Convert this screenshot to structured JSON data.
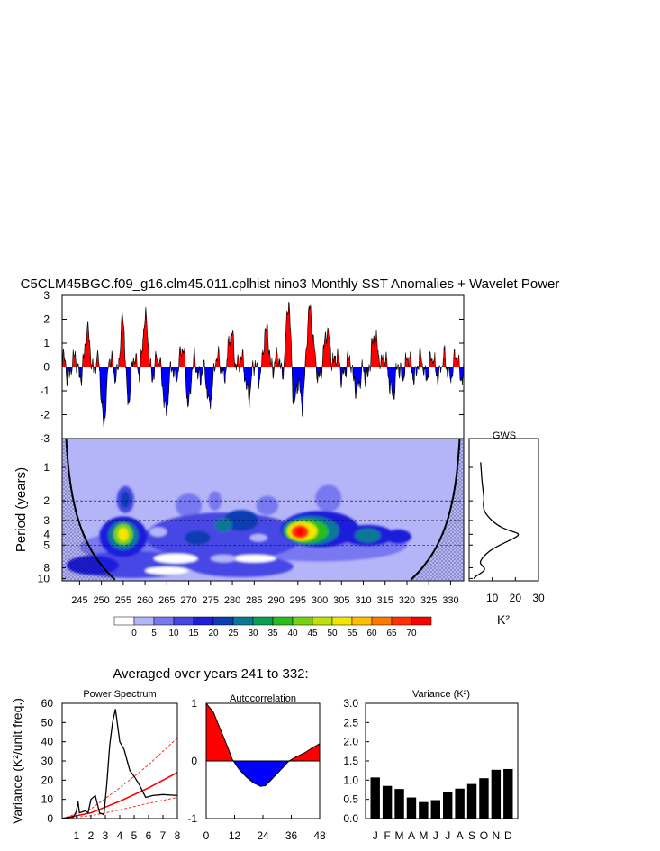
{
  "title": "C5CLM45BGC.f09_g16.clm45.011.cplhist nino3 Monthly SST Anomalies + Wavelet Power",
  "colors": {
    "positive": "#ff0000",
    "negative": "#0000ff",
    "line": "#000000",
    "bar": "#000000"
  },
  "chart_data": [
    {
      "name": "sst-anomalies",
      "type": "area",
      "ylim": [
        -3,
        3
      ],
      "yticks": [
        "3",
        "2",
        "1",
        "0",
        "-1",
        "-2",
        "-3"
      ],
      "xlim": [
        241,
        333
      ],
      "peaks_positive": [
        [
          255.3,
          2.85
        ],
        [
          293.0,
          2.8
        ],
        [
          297.5,
          2.6
        ],
        [
          269.5,
          1.85
        ],
        [
          260.0,
          1.6
        ],
        [
          288.0,
          1.3
        ],
        [
          280.0,
          1.25
        ],
        [
          302.0,
          1.5
        ],
        [
          313.0,
          1.3
        ],
        [
          247.0,
          1.2
        ]
      ],
      "peaks_negative": [
        [
          255.8,
          -2.65
        ],
        [
          269.8,
          -2.75
        ],
        [
          250.5,
          -1.95
        ],
        [
          265.0,
          -1.8
        ],
        [
          293.8,
          -1.95
        ],
        [
          296.0,
          -2.1
        ],
        [
          309.0,
          -1.05
        ],
        [
          317.0,
          -1.2
        ],
        [
          274.5,
          -1.5
        ],
        [
          284.0,
          -1.0
        ]
      ]
    },
    {
      "name": "wavelet-power",
      "type": "heatmap",
      "ylabel": "Period (years)",
      "yticks": [
        "1",
        "2",
        "3",
        "4",
        "5",
        "8",
        "10"
      ],
      "xticks": [
        "245",
        "250",
        "255",
        "260",
        "265",
        "270",
        "275",
        "280",
        "285",
        "290",
        "295",
        "300",
        "305",
        "310",
        "315",
        "320",
        "325",
        "330"
      ],
      "xlim": [
        241,
        333
      ],
      "colorbar_labels": [
        "0",
        "5",
        "10",
        "15",
        "20",
        "25",
        "30",
        "35",
        "40",
        "45",
        "50",
        "55",
        "60",
        "65",
        "70"
      ],
      "colorbar_colors": [
        "#ffffff",
        "#b4b4f8",
        "#7878f0",
        "#4646e6",
        "#1e1edc",
        "#0a3cb4",
        "#0a7896",
        "#0aa050",
        "#28be1e",
        "#78d214",
        "#bee10a",
        "#f0e600",
        "#ffbe00",
        "#ff7800",
        "#ff3200",
        "#ff0000"
      ],
      "dashed_periods": [
        2,
        3,
        5
      ]
    },
    {
      "name": "gws",
      "type": "line",
      "title": "GWS",
      "xlabel": "K²",
      "xticks": [
        "10",
        "20",
        "30"
      ],
      "xlim": [
        0,
        30
      ],
      "points": [
        [
          5,
          0.9
        ],
        [
          5.5,
          1.3
        ],
        [
          6,
          1.6
        ],
        [
          6.5,
          1.9
        ],
        [
          6,
          2.3
        ],
        [
          7.5,
          2.7
        ],
        [
          12,
          3.3
        ],
        [
          17,
          3.7
        ],
        [
          22,
          3.95
        ],
        [
          20,
          4.3
        ],
        [
          14,
          4.9
        ],
        [
          9,
          5.6
        ],
        [
          6,
          6.4
        ],
        [
          4.5,
          7.2
        ],
        [
          6,
          7.8
        ],
        [
          7,
          8.3
        ],
        [
          5,
          9.0
        ],
        [
          3,
          9.5
        ],
        [
          2,
          10.0
        ]
      ]
    },
    {
      "name": "averaged-panels",
      "title": "Averaged over years 241 to 332:",
      "power_spectrum": {
        "type": "line",
        "title": "Power Spectrum",
        "ylabel": "Variance (K²/unit freq.)",
        "yticks": [
          "60",
          "50",
          "40",
          "30",
          "20",
          "10",
          "0"
        ],
        "xticks": [
          "1",
          "2",
          "3",
          "4",
          "5",
          "6",
          "7",
          "8"
        ],
        "xlim": [
          0,
          8
        ],
        "ylim": [
          0,
          60
        ],
        "spectrum": [
          [
            0,
            0
          ],
          [
            0.8,
            1
          ],
          [
            1.0,
            4
          ],
          [
            1.1,
            9
          ],
          [
            1.2,
            3
          ],
          [
            1.6,
            4
          ],
          [
            1.8,
            3
          ],
          [
            2.0,
            10
          ],
          [
            2.3,
            12
          ],
          [
            2.6,
            3
          ],
          [
            2.9,
            2
          ],
          [
            3.1,
            18
          ],
          [
            3.3,
            38
          ],
          [
            3.5,
            50
          ],
          [
            3.7,
            57
          ],
          [
            4.0,
            40
          ],
          [
            4.3,
            36
          ],
          [
            4.7,
            25
          ],
          [
            5.0,
            22
          ],
          [
            5.4,
            17
          ],
          [
            5.8,
            11
          ],
          [
            6.3,
            12
          ],
          [
            7.0,
            12.5
          ],
          [
            8.0,
            12
          ]
        ],
        "red_noise": [
          [
            0,
            0
          ],
          [
            2,
            3
          ],
          [
            4,
            9
          ],
          [
            6,
            16
          ],
          [
            8,
            24
          ]
        ],
        "upper_bound": [
          [
            0,
            0
          ],
          [
            2,
            5
          ],
          [
            4,
            16
          ],
          [
            6,
            28
          ],
          [
            8,
            42
          ]
        ],
        "lower_bound": [
          [
            0,
            0
          ],
          [
            2,
            1.5
          ],
          [
            4,
            4.5
          ],
          [
            6,
            8
          ],
          [
            8,
            11
          ]
        ]
      },
      "autocorrelation": {
        "type": "area",
        "title": "Autocorrelation",
        "yticks": [
          "1",
          "0",
          "-1"
        ],
        "xticks": [
          "0",
          "12",
          "24",
          "36",
          "48"
        ],
        "xlim": [
          0,
          48
        ],
        "ylim": [
          -1,
          1
        ],
        "values": [
          [
            0,
            1
          ],
          [
            3,
            0.85
          ],
          [
            6,
            0.55
          ],
          [
            9,
            0.25
          ],
          [
            11,
            0.03
          ],
          [
            14,
            -0.15
          ],
          [
            17,
            -0.28
          ],
          [
            20,
            -0.38
          ],
          [
            23,
            -0.44
          ],
          [
            25,
            -0.43
          ],
          [
            27,
            -0.35
          ],
          [
            30,
            -0.22
          ],
          [
            33,
            -0.09
          ],
          [
            35,
            0.0
          ],
          [
            38,
            0.07
          ],
          [
            42,
            0.15
          ],
          [
            45,
            0.23
          ],
          [
            48,
            0.3
          ]
        ]
      },
      "variance": {
        "type": "bar",
        "title": "Variance (K²)",
        "yticks": [
          "3.0",
          "2.5",
          "2.0",
          "1.5",
          "1.0",
          "0.5",
          "0.0"
        ],
        "ylim": [
          0,
          3
        ],
        "categories": [
          "J",
          "F",
          "M",
          "A",
          "M",
          "J",
          "J",
          "A",
          "S",
          "O",
          "N",
          "D"
        ],
        "values": [
          1.07,
          0.85,
          0.77,
          0.55,
          0.43,
          0.48,
          0.68,
          0.78,
          0.9,
          1.05,
          1.27,
          1.29
        ]
      }
    }
  ]
}
